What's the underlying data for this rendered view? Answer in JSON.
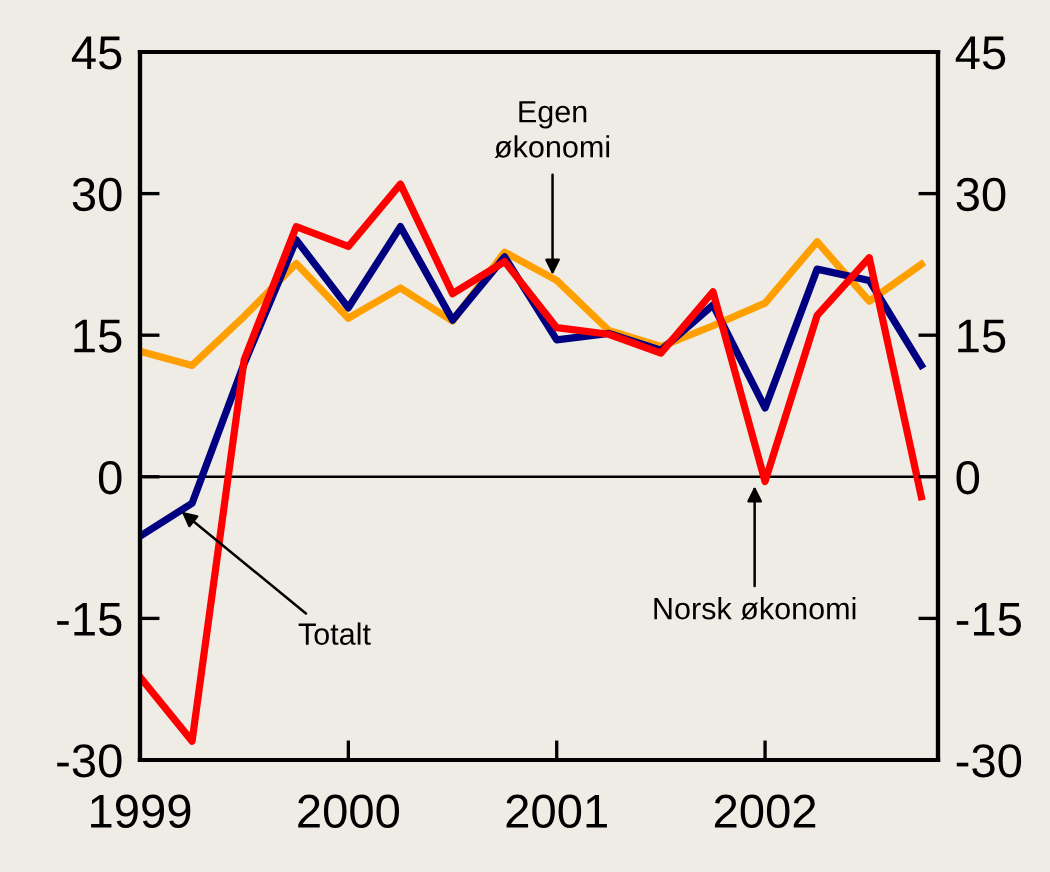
{
  "chart_data": {
    "type": "line",
    "x": [
      1999.0,
      1999.25,
      1999.5,
      1999.75,
      2000.0,
      2000.25,
      2000.5,
      2000.75,
      2001.0,
      2001.25,
      2001.5,
      2001.75,
      2002.0,
      2002.25,
      2002.5,
      2002.75
    ],
    "series": [
      {
        "color": "#ffa000",
        "values": [
          13.3,
          11.8,
          17,
          22.6,
          16.8,
          20.0,
          16.5,
          23.8,
          20.8,
          15.5,
          13.8,
          16.0,
          18.4,
          24.9,
          18.6,
          22.5
        ]
      },
      {
        "color": "#000080",
        "values": [
          -6.3,
          -2.8,
          12.0,
          25.1,
          17.9,
          26.5,
          16.6,
          23.3,
          14.5,
          15.2,
          13.4,
          18.2,
          7.3,
          22.0,
          20.8,
          11.8
        ]
      },
      {
        "color": "#ff0000",
        "values": [
          -21.2,
          -28.0,
          12.4,
          26.5,
          24.4,
          31.0,
          19.4,
          22.8,
          15.8,
          15.1,
          13.1,
          19.6,
          -0.5,
          17.1,
          23.2,
          -2.1
        ]
      }
    ],
    "xlim": [
      1999,
      2002.83
    ],
    "xticks": [
      1999,
      2000,
      2001,
      2002
    ],
    "ylim": [
      -30,
      45
    ],
    "yticks": [
      -30,
      -15,
      0,
      15,
      30,
      45
    ],
    "y2lim": [
      -30,
      45
    ],
    "y2ticks": [
      -30,
      -15,
      0,
      15,
      30,
      45
    ],
    "ref_lines": [
      {
        "axis": "y",
        "value": 0,
        "color": "#000000"
      }
    ],
    "annotations": [
      {
        "text": "Egen\nøkonomi",
        "x": 2000.98,
        "y": 21.4
      },
      {
        "text": "Totalt",
        "x": 1999.2,
        "y": -3.7
      },
      {
        "text": "Norsk økonomi",
        "x": 2001.95,
        "y": -1.0
      }
    ],
    "grid": false,
    "legend": false,
    "marker": "none",
    "line_style": "solid"
  }
}
